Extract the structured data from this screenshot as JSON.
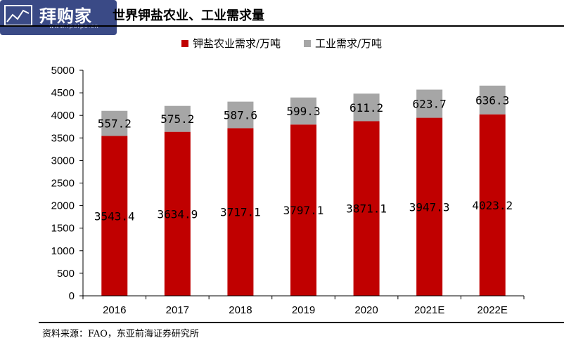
{
  "header": {
    "logo_name": "拜购家",
    "logo_url": "www.ipoipo.cn",
    "title": "世界钾盐农业、工业需求量"
  },
  "footer": {
    "source": "资料来源：FAO，东亚前海证券研究所"
  },
  "colors": {
    "agriculture": "#c00000",
    "industry": "#a6a6a6",
    "logo_bg": "#3a4a86"
  },
  "chart_data": {
    "type": "bar",
    "stacked": true,
    "title": "世界钾盐农业、工业需求量",
    "categories": [
      "2016",
      "2017",
      "2018",
      "2019",
      "2020",
      "2021E",
      "2022E"
    ],
    "series": [
      {
        "name": "钾盐农业需求/万吨",
        "values": [
          3543.4,
          3634.9,
          3717.1,
          3797.1,
          3871.1,
          3947.3,
          4023.2
        ],
        "labels": [
          "3543.4",
          "3634.9",
          "3717.1",
          "3797.1",
          "3871.1",
          "3947.3",
          "4023.2"
        ]
      },
      {
        "name": "工业需求/万吨",
        "values": [
          557.2,
          575.2,
          587.6,
          599.3,
          611.2,
          623.7,
          636.3
        ],
        "labels": [
          "557.2",
          "575.2",
          "587.6",
          "599.3",
          "611.2",
          "623.7",
          "636.3"
        ]
      }
    ],
    "yticks": [
      "0",
      "500",
      "1000",
      "1500",
      "2000",
      "2500",
      "3000",
      "3500",
      "4000",
      "4500",
      "5000"
    ],
    "ylim": [
      0,
      5000
    ],
    "grid": false,
    "legend_position": "top"
  }
}
